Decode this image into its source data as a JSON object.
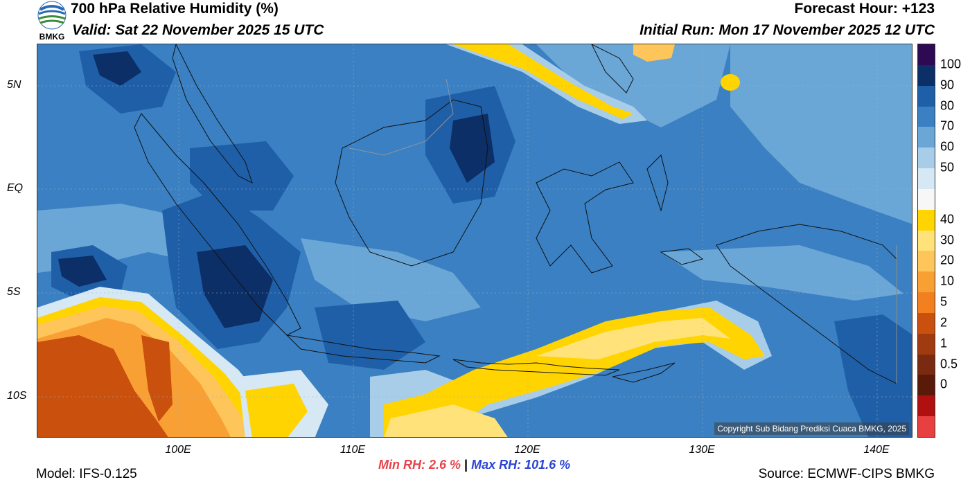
{
  "header": {
    "title": "700 hPa Relative Humidity (%)",
    "valid": "Valid: Sat 22 November 2025 15 UTC",
    "forecast_hour": "Forecast Hour: +123",
    "initial_run": "Initial Run: Mon 17 November 2025 12 UTC",
    "logo_text": "BMKG"
  },
  "map": {
    "lat_labels": [
      "5N",
      "EQ",
      "5S",
      "10S"
    ],
    "lon_labels": [
      "100E",
      "110E",
      "120E",
      "130E",
      "140E"
    ],
    "copyright": "Copyright Sub Bidang Prediksi Cuaca BMKG, 2025"
  },
  "colorbar": {
    "labels": [
      "100",
      "90",
      "80",
      "70",
      "60",
      "50",
      "40",
      "30",
      "20",
      "10",
      "5",
      "2",
      "1",
      "0.5",
      "0"
    ],
    "colors": [
      "#2e0a52",
      "#0b2f66",
      "#1f5fa8",
      "#3a80c2",
      "#6aa6d6",
      "#a8cde8",
      "#d5e8f3",
      "#f7f7f7",
      "#ffd400",
      "#ffe27a",
      "#fec55a",
      "#f9a035",
      "#f28020",
      "#c9500d",
      "#a03a10",
      "#7a2a10",
      "#5a1a0a",
      "#b01010",
      "#e84040"
    ]
  },
  "stats": {
    "min_label": "Min RH:",
    "min_value": "2.6 %",
    "separator": "|",
    "max_label": "Max RH:",
    "max_value": "101.6 %"
  },
  "footer": {
    "model": "Model: IFS-0.125",
    "source": "Source: ECMWF-CIPS BMKG"
  }
}
